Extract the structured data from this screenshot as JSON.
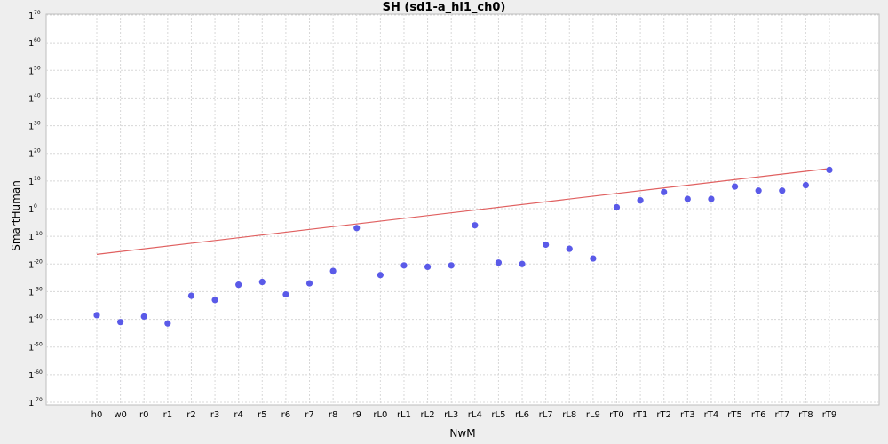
{
  "chart_data": {
    "type": "scatter",
    "title": "SH (sd1-a_hl1_ch0)",
    "xlabel": "NwM",
    "ylabel": "SmartHuman",
    "y_scale": "log",
    "y_tick_base": "1",
    "y_tick_exponents": [
      70,
      60,
      50,
      40,
      30,
      20,
      10,
      0,
      -10,
      -20,
      -30,
      -40,
      -50,
      -60,
      -70
    ],
    "ylim_exponent": [
      -70,
      70
    ],
    "grid": true,
    "categories": [
      "h0",
      "w0",
      "r0",
      "r1",
      "r2",
      "r3",
      "r4",
      "r5",
      "r6",
      "r7",
      "r8",
      "r9",
      "rL0",
      "rL1",
      "rL2",
      "rL3",
      "rL4",
      "rL5",
      "rL6",
      "rL7",
      "rL8",
      "rL9",
      "rT0",
      "rT1",
      "rT2",
      "rT3",
      "rT4",
      "rT5",
      "rT6",
      "rT7",
      "rT8",
      "rT9"
    ],
    "series": [
      {
        "kind": "points",
        "color": "#5a5ae8",
        "log10_values": [
          -38.5,
          -41,
          -39,
          -41.5,
          -31.5,
          -33,
          -27.5,
          -26.5,
          -31,
          -27,
          -22.5,
          -7,
          -24,
          -20.5,
          -21,
          -20.5,
          -6,
          -19.5,
          -20,
          -13,
          -14.5,
          -18,
          0.5,
          3,
          6,
          3.5,
          3.5,
          8,
          6.5,
          6.5,
          8.5,
          14
        ]
      },
      {
        "kind": "trend-line",
        "color": "#e06060",
        "log10_start": -16.5,
        "log10_end": 14.5
      }
    ]
  }
}
